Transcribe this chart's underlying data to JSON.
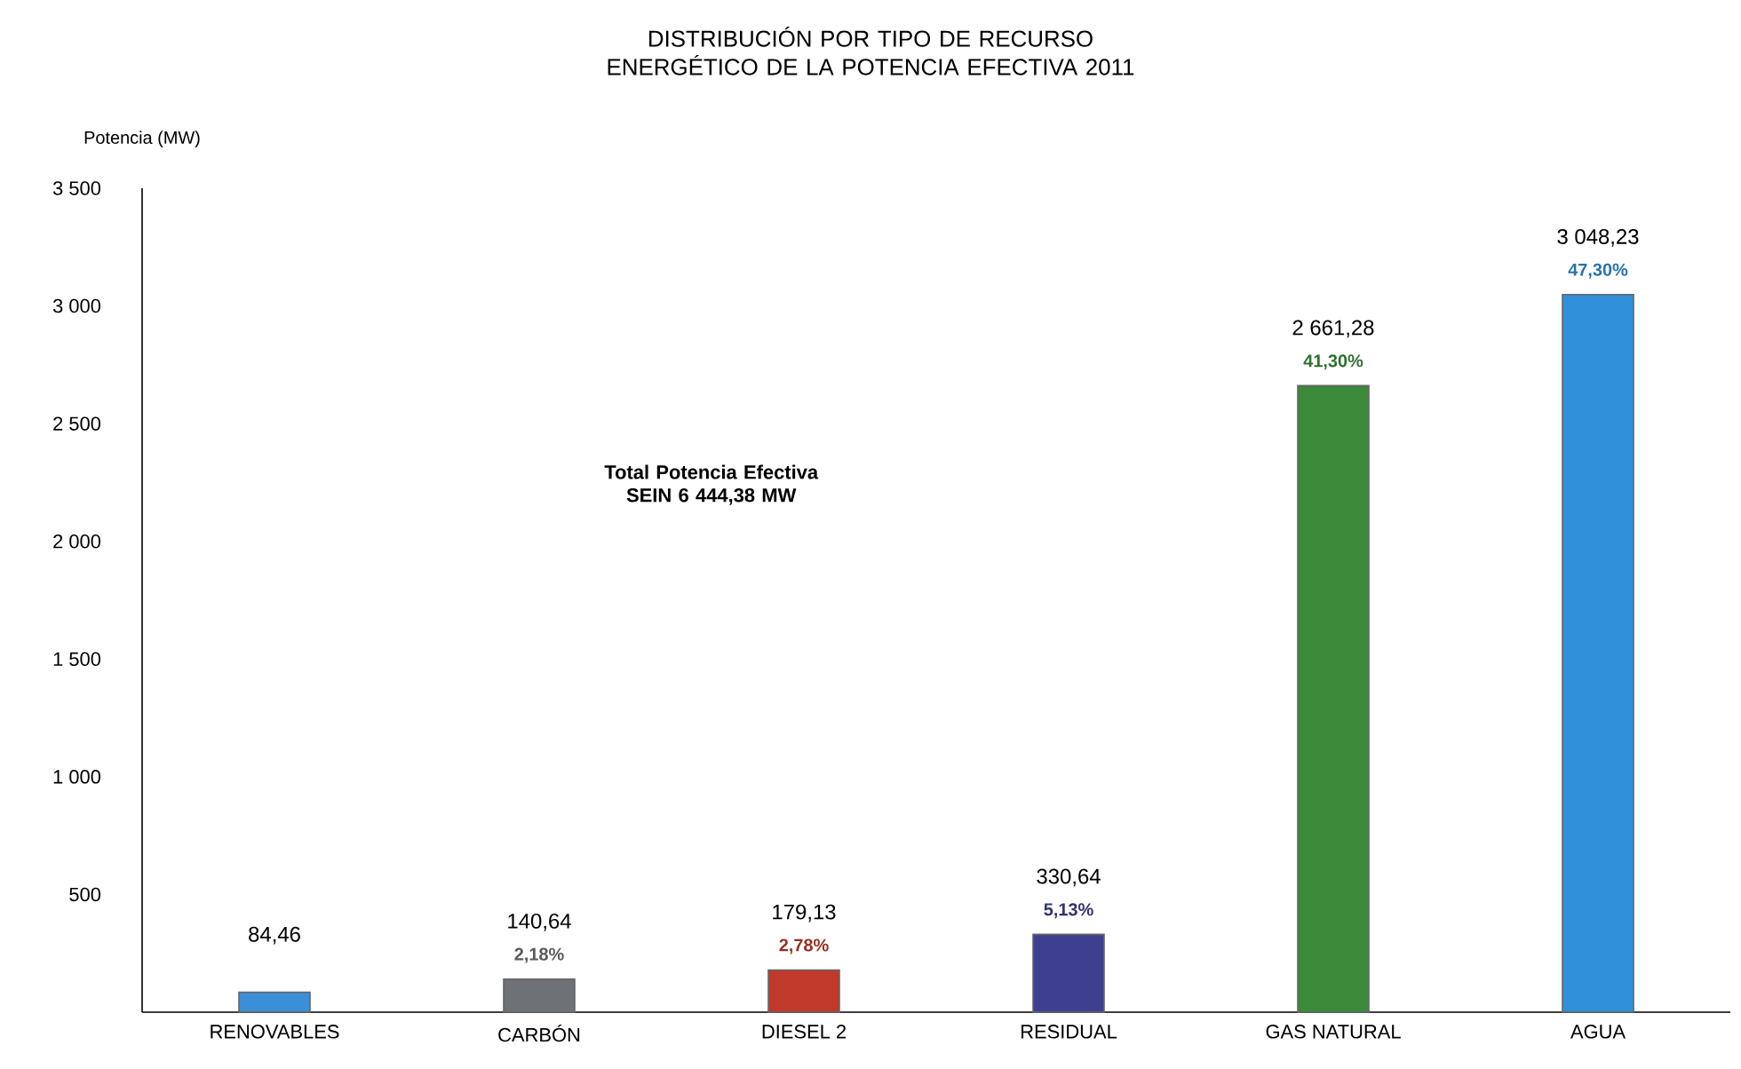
{
  "chart_data": {
    "type": "bar",
    "title": "DISTRIBUCIÓN POR TIPO DE RECURSO ENERGÉTICO DE LA POTENCIA EFECTIVA 2011",
    "ylabel": "Potencia (MW)",
    "categories": [
      "RENOVABLES",
      "CARBÓN",
      "DIESEL 2",
      "RESIDUAL",
      "GAS NATURAL",
      "AGUA"
    ],
    "values": [
      84.46,
      140.64,
      179.13,
      330.64,
      2661.28,
      3048.23
    ],
    "colors": [
      "#3a8fd8",
      "#6e7175",
      "#c0392b",
      "#3f3f8f",
      "#3a8a3a",
      "#2f8fd8"
    ],
    "value_labels": [
      "84,46",
      "140,64",
      "179,13",
      "330,64",
      "2 661,28",
      "3 048,23"
    ],
    "ylim": [
      0,
      3500
    ],
    "yticks": [
      500,
      {
        "value": 1000,
        "label": "1 000"
      },
      {
        "value": 1500,
        "label": "1 500"
      },
      {
        "value": 2000,
        "label": "2 000"
      },
      {
        "value": 2500,
        "label": "2 500"
      },
      {
        "value": 3000,
        "label": "3 000"
      },
      {
        "value": 3500,
        "label": "3 500"
      }
    ],
    "annotations": [
      "Total Potencia Efectiva SEIN 6 444,38 MW",
      {
        "text": "2,18%",
        "x": "CARBÓN",
        "y": 140.64
      },
      {
        "text": "2,78%",
        "x": "DIESEL 2",
        "y": 179.13
      },
      {
        "text": "5,13%",
        "x": "RESIDUAL",
        "y": 330.64
      },
      {
        "text": "41,30%",
        "x": "GAS NATURAL",
        "y": 2661.28
      },
      {
        "text": "47,30%",
        "x": "AGUA",
        "y": 3048.23
      }
    ]
  }
}
